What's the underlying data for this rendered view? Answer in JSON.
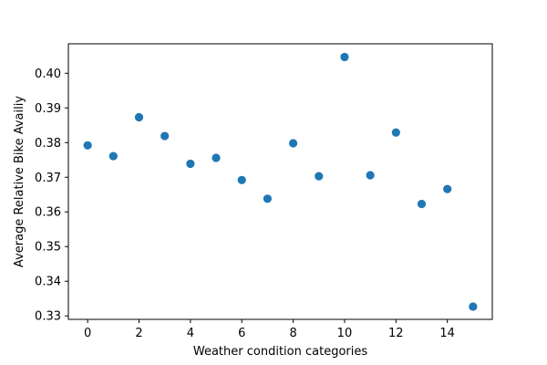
{
  "chart_data": {
    "type": "scatter",
    "title": "",
    "xlabel": "Weather condition categories",
    "ylabel": "Average Relative Bike Availiy",
    "xlim": [
      -0.75,
      15.75
    ],
    "ylim": [
      0.329,
      0.4085
    ],
    "xticks": [
      0,
      2,
      4,
      6,
      8,
      10,
      12,
      14
    ],
    "yticks": [
      0.33,
      0.34,
      0.35,
      0.36,
      0.37,
      0.38,
      0.39,
      0.4
    ],
    "ytick_labels": [
      "0.33",
      "0.34",
      "0.35",
      "0.36",
      "0.37",
      "0.38",
      "0.39",
      "0.40"
    ],
    "grid": false,
    "marker_color": "#1f77b4",
    "points": [
      {
        "x": 0,
        "y": 0.3792
      },
      {
        "x": 1,
        "y": 0.3761
      },
      {
        "x": 2,
        "y": 0.3873
      },
      {
        "x": 3,
        "y": 0.3819
      },
      {
        "x": 4,
        "y": 0.3739
      },
      {
        "x": 5,
        "y": 0.3756
      },
      {
        "x": 6,
        "y": 0.3692
      },
      {
        "x": 7,
        "y": 0.3638
      },
      {
        "x": 8,
        "y": 0.3798
      },
      {
        "x": 9,
        "y": 0.3703
      },
      {
        "x": 10,
        "y": 0.4047
      },
      {
        "x": 11,
        "y": 0.3706
      },
      {
        "x": 12,
        "y": 0.3829
      },
      {
        "x": 13,
        "y": 0.3623
      },
      {
        "x": 14,
        "y": 0.3666
      },
      {
        "x": 15,
        "y": 0.3327
      }
    ]
  }
}
